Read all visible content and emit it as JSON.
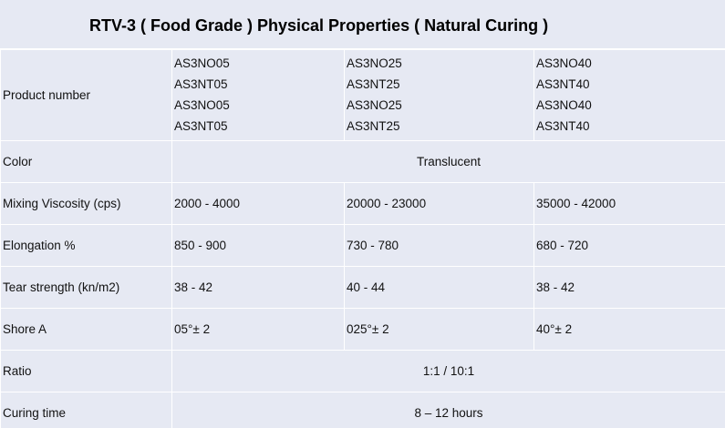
{
  "title": "RTV-3 ( Food Grade ) Physical Properties ( Natural Curing )",
  "product_row": {
    "label": "Product number",
    "columns": [
      [
        "AS3NO05",
        "AS3NT05",
        "AS3NO05",
        "AS3NT05"
      ],
      [
        "AS3NO25",
        "AS3NT25",
        "AS3NO25",
        "AS3NT25"
      ],
      [
        "AS3NO40",
        "AS3NT40",
        "AS3NO40",
        "AS3NT40"
      ]
    ]
  },
  "color_row": {
    "label": "Color",
    "value": "Translucent"
  },
  "viscosity_row": {
    "label": "Mixing Viscosity (cps)",
    "values": [
      "2000 - 4000",
      "20000 - 23000",
      "35000 - 42000"
    ]
  },
  "elongation_row": {
    "label": "Elongation %",
    "values": [
      "850 - 900",
      "730 - 780",
      "680 - 720"
    ]
  },
  "tear_row": {
    "label": "Tear strength (kn/m2)",
    "values": [
      "38 - 42",
      "40 - 44",
      "38 - 42"
    ]
  },
  "shore_row": {
    "label": "Shore A",
    "values": [
      "05°± 2",
      "025°± 2",
      "40°± 2"
    ]
  },
  "ratio_row": {
    "label": "Ratio",
    "value": "1:1 / 10:1"
  },
  "curing_row": {
    "label": "Curing time",
    "value": "8 – 12 hours"
  }
}
